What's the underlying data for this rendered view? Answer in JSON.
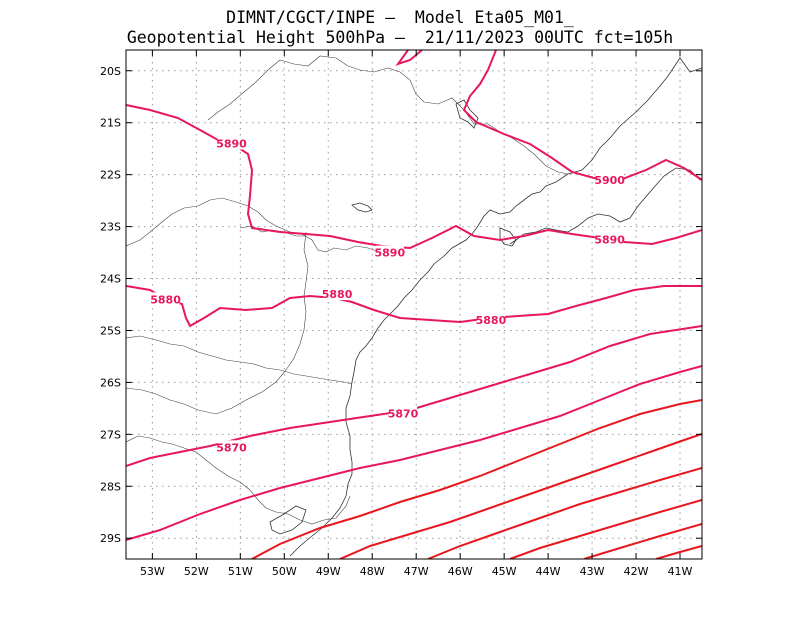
{
  "header": {
    "line1": "DIMNT/CGCT/INPE –  Model Eta05_M01_",
    "line2": "Geopotential Height 500hPa –  21/11/2023 00UTC fct=105h"
  },
  "map": {
    "lon_range": [
      -53.6,
      -40.5
    ],
    "lat_range": [
      -29.4,
      -19.6
    ],
    "lon_ticks": [
      {
        "value": -53,
        "label": "53W"
      },
      {
        "value": -52,
        "label": "52W"
      },
      {
        "value": -51,
        "label": "51W"
      },
      {
        "value": -50,
        "label": "50W"
      },
      {
        "value": -49,
        "label": "49W"
      },
      {
        "value": -48,
        "label": "48W"
      },
      {
        "value": -47,
        "label": "47W"
      },
      {
        "value": -46,
        "label": "46W"
      },
      {
        "value": -45,
        "label": "45W"
      },
      {
        "value": -44,
        "label": "44W"
      },
      {
        "value": -43,
        "label": "43W"
      },
      {
        "value": -42,
        "label": "42W"
      },
      {
        "value": -41,
        "label": "41W"
      }
    ],
    "lat_ticks": [
      {
        "value": -20,
        "label": "20S"
      },
      {
        "value": -21,
        "label": "21S"
      },
      {
        "value": -22,
        "label": "22S"
      },
      {
        "value": -23,
        "label": "23S"
      },
      {
        "value": -24,
        "label": "24S"
      },
      {
        "value": -25,
        "label": "25S"
      },
      {
        "value": -26,
        "label": "26S"
      },
      {
        "value": -27,
        "label": "27S"
      },
      {
        "value": -28,
        "label": "28S"
      },
      {
        "value": -29,
        "label": "29S"
      }
    ],
    "grid": "dotted",
    "contour_color": "#e8175d",
    "contour_color_south": "#e8171f",
    "contour_labels": [
      {
        "text": "5890",
        "lon": -51.2,
        "lat": -21.4
      },
      {
        "text": "5890",
        "lon": -47.6,
        "lat": -23.5
      },
      {
        "text": "5890",
        "lon": -42.6,
        "lat": -23.25
      },
      {
        "text": "5900",
        "lon": -42.6,
        "lat": -22.1
      },
      {
        "text": "5880",
        "lon": -52.7,
        "lat": -24.4
      },
      {
        "text": "5880",
        "lon": -48.8,
        "lat": -24.3
      },
      {
        "text": "5880",
        "lon": -45.3,
        "lat": -24.8
      },
      {
        "text": "5870",
        "lon": -47.3,
        "lat": -26.6
      },
      {
        "text": "5870",
        "lon": -51.2,
        "lat": -27.25
      }
    ]
  }
}
